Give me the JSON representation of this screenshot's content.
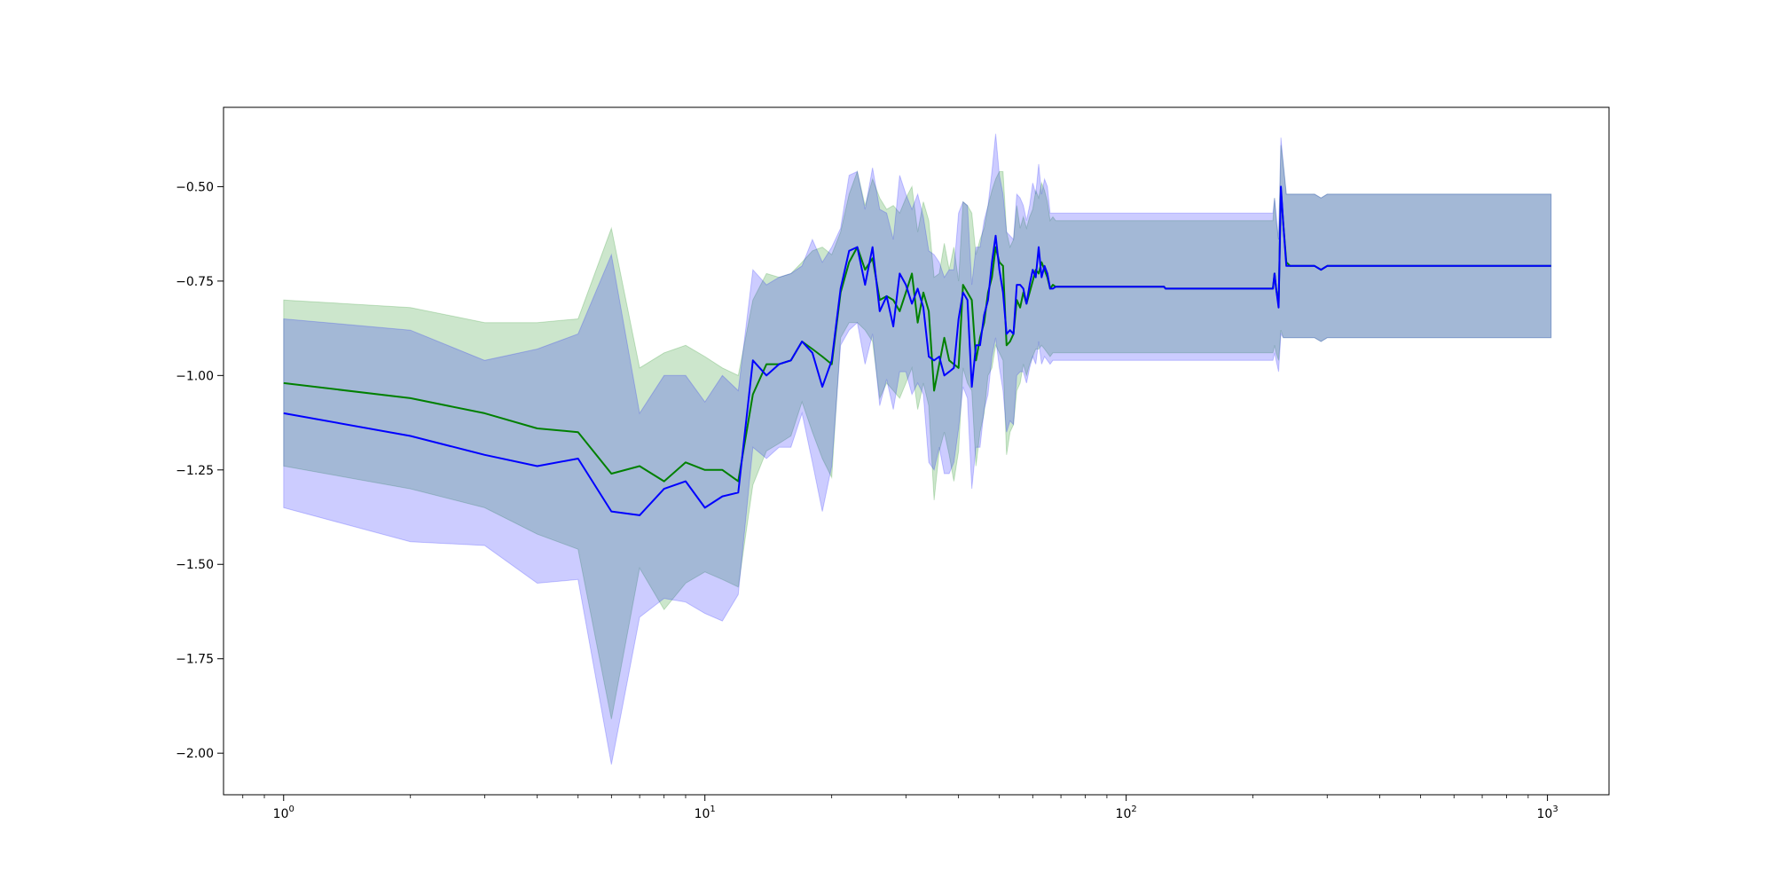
{
  "chart_data": {
    "type": "line",
    "title": "",
    "xlabel": "",
    "ylabel": "",
    "xscale": "log",
    "xlim": [
      0.72,
      1400
    ],
    "ylim": [
      -2.11,
      -0.29
    ],
    "grid": false,
    "legend": "none",
    "x_ticks": [
      {
        "value": 1,
        "base": "10",
        "exp": "0"
      },
      {
        "value": 10,
        "base": "10",
        "exp": "1"
      },
      {
        "value": 100,
        "base": "10",
        "exp": "2"
      },
      {
        "value": 1000,
        "base": "10",
        "exp": "3"
      }
    ],
    "y_ticks": [
      {
        "value": -0.5,
        "label": "−0.50"
      },
      {
        "value": -0.75,
        "label": "−0.75"
      },
      {
        "value": -1.0,
        "label": "−1.00"
      },
      {
        "value": -1.25,
        "label": "−1.25"
      },
      {
        "value": -1.5,
        "label": "−1.50"
      },
      {
        "value": -1.75,
        "label": "−1.75"
      },
      {
        "value": -2.0,
        "label": "−2.00"
      }
    ],
    "series": [
      {
        "color": "#008000",
        "band_color": "#008000",
        "x": [
          1,
          2,
          3,
          4,
          5,
          6,
          7,
          8,
          9,
          10,
          11,
          12,
          13,
          14,
          15,
          16,
          17,
          18,
          19,
          20,
          21,
          22,
          23,
          24,
          25,
          26,
          27,
          28,
          29,
          30,
          31,
          32,
          33,
          34,
          35,
          36,
          37,
          38,
          39,
          40,
          41,
          42,
          43,
          44,
          45,
          46,
          47,
          48,
          49,
          50,
          51,
          52,
          53,
          54,
          55,
          56,
          57,
          58,
          59,
          60,
          61,
          62,
          63,
          64,
          65,
          66,
          67,
          68,
          69,
          70,
          71,
          72,
          123,
          124,
          220,
          223,
          225,
          227,
          230,
          233,
          236,
          240,
          245,
          250,
          280,
          290,
          300,
          1020
        ],
        "y": [
          -1.02,
          -1.06,
          -1.1,
          -1.14,
          -1.15,
          -1.26,
          -1.24,
          -1.28,
          -1.23,
          -1.25,
          -1.25,
          -1.28,
          -1.05,
          -0.97,
          -0.97,
          -0.96,
          -0.91,
          -0.93,
          -0.95,
          -0.97,
          -0.78,
          -0.7,
          -0.66,
          -0.72,
          -0.69,
          -0.8,
          -0.79,
          -0.8,
          -0.83,
          -0.78,
          -0.73,
          -0.86,
          -0.78,
          -0.83,
          -1.04,
          -0.97,
          -0.9,
          -0.96,
          -0.97,
          -0.98,
          -0.76,
          -0.78,
          -0.8,
          -0.96,
          -0.9,
          -0.86,
          -0.78,
          -0.74,
          -0.66,
          -0.7,
          -0.71,
          -0.92,
          -0.91,
          -0.89,
          -0.8,
          -0.82,
          -0.78,
          -0.81,
          -0.78,
          -0.75,
          -0.72,
          -0.73,
          -0.7,
          -0.72,
          -0.74,
          -0.77,
          -0.76,
          -0.765,
          -0.765,
          -0.765,
          -0.765,
          -0.765,
          -0.765,
          -0.77,
          -0.77,
          -0.77,
          -0.73,
          -0.77,
          -0.81,
          -0.51,
          -0.6,
          -0.7,
          -0.71,
          -0.71,
          -0.71,
          -0.72,
          -0.71,
          -0.71
        ],
        "lower": [
          -1.24,
          -1.3,
          -1.35,
          -1.42,
          -1.46,
          -1.91,
          -1.51,
          -1.62,
          -1.55,
          -1.52,
          -1.54,
          -1.56,
          -1.29,
          -1.2,
          -1.18,
          -1.16,
          -1.07,
          -1.15,
          -1.22,
          -1.27,
          -0.9,
          -0.86,
          -0.86,
          -0.88,
          -0.91,
          -1.06,
          -1.02,
          -1.04,
          -1.06,
          -1.02,
          -0.98,
          -1.09,
          -1.02,
          -1.08,
          -1.33,
          -1.2,
          -1.15,
          -1.21,
          -1.28,
          -1.2,
          -0.98,
          -1.02,
          -1.04,
          -1.24,
          -1.15,
          -1.1,
          -1.0,
          -0.98,
          -0.92,
          -0.94,
          -0.96,
          -1.21,
          -1.15,
          -1.13,
          -1.04,
          -1.02,
          -0.97,
          -1.0,
          -0.97,
          -0.95,
          -0.93,
          -0.93,
          -0.92,
          -0.93,
          -0.94,
          -0.95,
          -0.94,
          -0.94,
          -0.94,
          -0.94,
          -0.94,
          -0.94,
          -0.94,
          -0.94,
          -0.94,
          -0.94,
          -0.92,
          -0.94,
          -0.96,
          -0.88,
          -0.9,
          -0.9,
          -0.9,
          -0.9,
          -0.9,
          -0.91,
          -0.9,
          -0.9
        ],
        "upper": [
          -0.8,
          -0.82,
          -0.86,
          -0.86,
          -0.85,
          -0.61,
          -0.98,
          -0.94,
          -0.92,
          -0.95,
          -0.98,
          -1.0,
          -0.8,
          -0.73,
          -0.74,
          -0.73,
          -0.7,
          -0.67,
          -0.66,
          -0.68,
          -0.62,
          -0.52,
          -0.46,
          -0.55,
          -0.48,
          -0.53,
          -0.56,
          -0.55,
          -0.57,
          -0.53,
          -0.5,
          -0.62,
          -0.54,
          -0.59,
          -0.74,
          -0.73,
          -0.65,
          -0.72,
          -0.66,
          -0.75,
          -0.54,
          -0.55,
          -0.57,
          -0.68,
          -0.64,
          -0.61,
          -0.55,
          -0.51,
          -0.48,
          -0.46,
          -0.46,
          -0.62,
          -0.66,
          -0.64,
          -0.55,
          -0.61,
          -0.58,
          -0.61,
          -0.58,
          -0.56,
          -0.51,
          -0.53,
          -0.49,
          -0.51,
          -0.54,
          -0.59,
          -0.58,
          -0.59,
          -0.59,
          -0.59,
          -0.59,
          -0.59,
          -0.59,
          -0.59,
          -0.59,
          -0.59,
          -0.53,
          -0.59,
          -0.64,
          -0.39,
          -0.44,
          -0.52,
          -0.52,
          -0.52,
          -0.52,
          -0.53,
          -0.52,
          -0.52
        ]
      },
      {
        "color": "#0000ff",
        "band_color": "#0000ff",
        "x": [
          1,
          2,
          3,
          4,
          5,
          6,
          7,
          8,
          9,
          10,
          11,
          12,
          13,
          14,
          15,
          16,
          17,
          18,
          19,
          20,
          21,
          22,
          23,
          24,
          25,
          26,
          27,
          28,
          29,
          30,
          31,
          32,
          33,
          34,
          35,
          36,
          37,
          38,
          39,
          40,
          41,
          42,
          43,
          44,
          45,
          46,
          47,
          48,
          49,
          50,
          51,
          52,
          53,
          54,
          55,
          56,
          57,
          58,
          59,
          60,
          61,
          62,
          63,
          64,
          65,
          66,
          67,
          68,
          69,
          70,
          71,
          72,
          123,
          124,
          220,
          223,
          225,
          227,
          230,
          233,
          236,
          240,
          245,
          250,
          280,
          290,
          300,
          1020
        ],
        "y": [
          -1.1,
          -1.16,
          -1.21,
          -1.24,
          -1.22,
          -1.36,
          -1.37,
          -1.3,
          -1.28,
          -1.35,
          -1.32,
          -1.31,
          -0.96,
          -1.0,
          -0.97,
          -0.96,
          -0.91,
          -0.94,
          -1.03,
          -0.96,
          -0.77,
          -0.67,
          -0.66,
          -0.76,
          -0.66,
          -0.83,
          -0.79,
          -0.87,
          -0.73,
          -0.76,
          -0.81,
          -0.77,
          -0.82,
          -0.95,
          -0.96,
          -0.95,
          -1.0,
          -0.99,
          -0.98,
          -0.85,
          -0.78,
          -0.8,
          -1.03,
          -0.92,
          -0.92,
          -0.84,
          -0.8,
          -0.7,
          -0.63,
          -0.72,
          -0.78,
          -0.89,
          -0.88,
          -0.89,
          -0.76,
          -0.76,
          -0.77,
          -0.81,
          -0.76,
          -0.72,
          -0.74,
          -0.66,
          -0.74,
          -0.71,
          -0.73,
          -0.77,
          -0.77,
          -0.765,
          -0.765,
          -0.765,
          -0.765,
          -0.765,
          -0.765,
          -0.77,
          -0.77,
          -0.77,
          -0.73,
          -0.77,
          -0.82,
          -0.5,
          -0.6,
          -0.71,
          -0.71,
          -0.71,
          -0.71,
          -0.72,
          -0.71,
          -0.71
        ],
        "lower": [
          -1.35,
          -1.44,
          -1.45,
          -1.55,
          -1.54,
          -2.03,
          -1.64,
          -1.59,
          -1.6,
          -1.63,
          -1.65,
          -1.58,
          -1.19,
          -1.22,
          -1.19,
          -1.19,
          -1.1,
          -1.23,
          -1.36,
          -1.24,
          -0.92,
          -0.88,
          -0.86,
          -0.97,
          -0.89,
          -1.08,
          -1.01,
          -1.09,
          -0.99,
          -0.99,
          -1.05,
          -1.02,
          -1.05,
          -1.23,
          -1.25,
          -1.19,
          -1.26,
          -1.26,
          -1.23,
          -1.14,
          -1.03,
          -1.06,
          -1.3,
          -1.19,
          -1.19,
          -1.09,
          -1.05,
          -0.95,
          -0.9,
          -0.98,
          -1.04,
          -1.15,
          -1.12,
          -1.13,
          -1.0,
          -0.99,
          -0.99,
          -1.02,
          -0.98,
          -0.95,
          -0.97,
          -0.91,
          -0.97,
          -0.95,
          -0.96,
          -0.97,
          -0.96,
          -0.96,
          -0.96,
          -0.96,
          -0.96,
          -0.96,
          -0.96,
          -0.96,
          -0.96,
          -0.96,
          -0.94,
          -0.96,
          -0.99,
          -0.89,
          -0.9,
          -0.9,
          -0.9,
          -0.9,
          -0.9,
          -0.91,
          -0.9,
          -0.9
        ],
        "upper": [
          -0.85,
          -0.88,
          -0.96,
          -0.93,
          -0.89,
          -0.68,
          -1.1,
          -1.0,
          -1.0,
          -1.07,
          -1.0,
          -1.04,
          -0.72,
          -0.76,
          -0.74,
          -0.73,
          -0.71,
          -0.64,
          -0.7,
          -0.66,
          -0.61,
          -0.47,
          -0.46,
          -0.56,
          -0.45,
          -0.56,
          -0.57,
          -0.64,
          -0.47,
          -0.52,
          -0.56,
          -0.52,
          -0.58,
          -0.67,
          -0.68,
          -0.7,
          -0.74,
          -0.72,
          -0.72,
          -0.57,
          -0.54,
          -0.55,
          -0.76,
          -0.66,
          -0.66,
          -0.59,
          -0.55,
          -0.46,
          -0.36,
          -0.47,
          -0.52,
          -0.62,
          -0.63,
          -0.64,
          -0.52,
          -0.53,
          -0.55,
          -0.59,
          -0.55,
          -0.49,
          -0.52,
          -0.44,
          -0.52,
          -0.48,
          -0.5,
          -0.57,
          -0.57,
          -0.57,
          -0.57,
          -0.57,
          -0.57,
          -0.57,
          -0.57,
          -0.57,
          -0.57,
          -0.57,
          -0.53,
          -0.57,
          -0.64,
          -0.37,
          -0.44,
          -0.52,
          -0.52,
          -0.52,
          -0.52,
          -0.53,
          -0.52,
          -0.52
        ]
      }
    ]
  }
}
